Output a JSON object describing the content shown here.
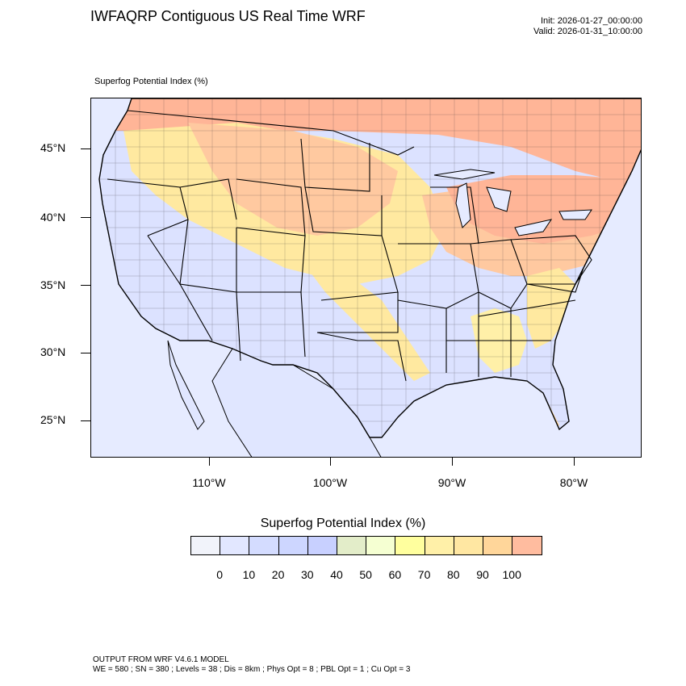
{
  "header": {
    "title": "IWFAQRP Contiguous US Real Time WRF",
    "init": "Init: 2026-01-27_00:00:00",
    "valid": "Valid: 2026-01-31_10:00:00"
  },
  "map": {
    "field_label": "Superfog Potential Index   (%)",
    "lat_labels": [
      "45°N",
      "40°N",
      "35°N",
      "30°N",
      "25°N"
    ],
    "lon_labels": [
      "110°W",
      "100°W",
      "90°W",
      "80°W"
    ],
    "colors": {
      "ocean": "#e6ebff",
      "land_low": "#dce2ff",
      "land_mid": "#ffe9a0",
      "land_high": "#ffb597",
      "boundary": "#000000"
    }
  },
  "colorbar": {
    "title": "Superfog Potential Index  (%)",
    "colors": [
      "#f1f3fa",
      "#e2e7ff",
      "#d4dcff",
      "#cdd6ff",
      "#c8d0ff",
      "#e3edc9",
      "#f5ffd2",
      "#ffff9e",
      "#fff0a8",
      "#ffe7a2",
      "#ffd69a",
      "#ffbc9f"
    ],
    "labels": [
      "0",
      "10",
      "20",
      "30",
      "40",
      "50",
      "60",
      "70",
      "80",
      "90",
      "100"
    ]
  },
  "footer": {
    "line1": "OUTPUT FROM WRF V4.6.1 MODEL",
    "line2": "WE = 580 ; SN = 380 ; Levels = 38 ; Dis = 8km ; Phys Opt = 8 ; PBL Opt = 1 ; Cu Opt = 3"
  }
}
